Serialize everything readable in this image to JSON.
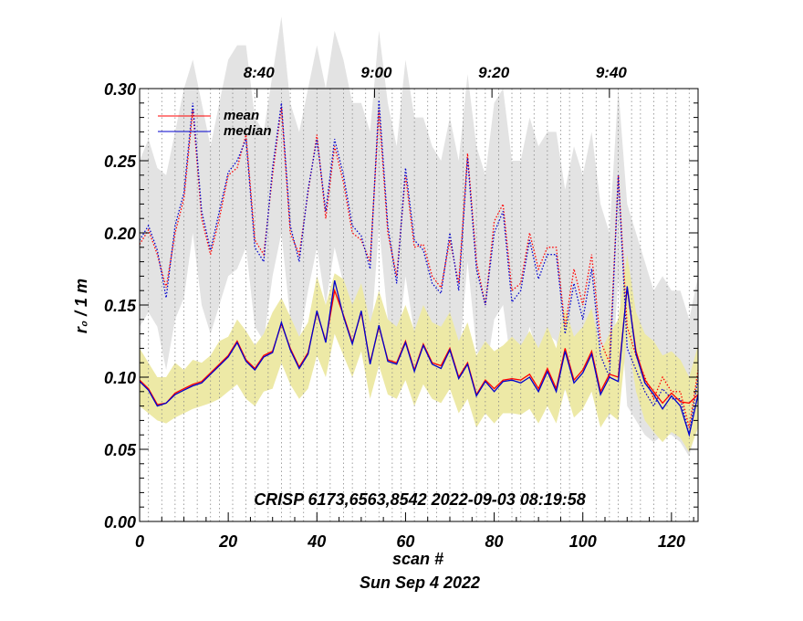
{
  "chart_data": {
    "type": "line",
    "title": "CRISP 6173,6563,8542 2022-09-03 08:19:58",
    "xlabel": "scan #",
    "ylabel": "r₀ / 1 m",
    "date_label": "Sun Sep  4 2022",
    "xlim": [
      0,
      126
    ],
    "ylim": [
      0,
      0.3
    ],
    "x_ticks": [
      0,
      20,
      40,
      60,
      80,
      100,
      120
    ],
    "x_tick_labels": [
      "0",
      "20",
      "40",
      "60",
      "80",
      "100",
      "120"
    ],
    "y_ticks": [
      0,
      0.05,
      0.1,
      0.15,
      0.2,
      0.25,
      0.3
    ],
    "y_tick_labels": [
      "0.00",
      "0.05",
      "0.10",
      "0.15",
      "0.20",
      "0.25",
      "0.30"
    ],
    "top_axis": {
      "ticks": [
        {
          "scan": 26.5,
          "label": "8:40"
        },
        {
          "scan": 53,
          "label": "9:00"
        },
        {
          "scan": 79.5,
          "label": "9:20"
        },
        {
          "scan": 106,
          "label": "9:40"
        }
      ]
    },
    "scan_gridlines": [
      2,
      5,
      8,
      10,
      13,
      16,
      18,
      21,
      24,
      26,
      29,
      32,
      34,
      37,
      40,
      43,
      46,
      48,
      51,
      54,
      57,
      59,
      62,
      65,
      67,
      70,
      73,
      76,
      78,
      81,
      84,
      86,
      89,
      92,
      95,
      97,
      100,
      103,
      106,
      108,
      111,
      113,
      116,
      119,
      121,
      124
    ],
    "legend": {
      "position": "top-left",
      "entries": [
        {
          "name": "mean",
          "color": "#ff0000"
        },
        {
          "name": "median",
          "color": "#0000cc"
        }
      ]
    },
    "colors": {
      "mean": "#ff0000",
      "median": "#0000cc",
      "band_low": "#ede9a6",
      "band_high": "#e3e3e3",
      "grid": "#888888"
    },
    "series": [
      {
        "name": "mean_low",
        "x": [
          0,
          2,
          4,
          6,
          8,
          10,
          12,
          14,
          16,
          18,
          20,
          22,
          24,
          26,
          28,
          30,
          32,
          34,
          36,
          38,
          40,
          42,
          44,
          46,
          48,
          50,
          52,
          54,
          56,
          58,
          60,
          62,
          64,
          66,
          68,
          70,
          72,
          74,
          76,
          78,
          80,
          82,
          84,
          86,
          88,
          90,
          92,
          94,
          96,
          98,
          100,
          102,
          104,
          106,
          108,
          110,
          112,
          114,
          116,
          118,
          120,
          122,
          124,
          126
        ],
        "values": [
          0.098,
          0.092,
          0.081,
          0.082,
          0.089,
          0.092,
          0.095,
          0.097,
          0.103,
          0.109,
          0.115,
          0.125,
          0.112,
          0.106,
          0.115,
          0.118,
          0.137,
          0.12,
          0.107,
          0.117,
          0.145,
          0.125,
          0.16,
          0.143,
          0.124,
          0.145,
          0.11,
          0.135,
          0.112,
          0.11,
          0.125,
          0.105,
          0.123,
          0.11,
          0.108,
          0.12,
          0.1,
          0.11,
          0.088,
          0.098,
          0.092,
          0.098,
          0.099,
          0.098,
          0.102,
          0.092,
          0.106,
          0.092,
          0.12,
          0.098,
          0.105,
          0.118,
          0.09,
          0.102,
          0.1,
          0.162,
          0.118,
          0.098,
          0.09,
          0.082,
          0.089,
          0.083,
          0.082,
          0.088
        ]
      },
      {
        "name": "median_low",
        "x": [
          0,
          2,
          4,
          6,
          8,
          10,
          12,
          14,
          16,
          18,
          20,
          22,
          24,
          26,
          28,
          30,
          32,
          34,
          36,
          38,
          40,
          42,
          44,
          46,
          48,
          50,
          52,
          54,
          56,
          58,
          60,
          62,
          64,
          66,
          68,
          70,
          72,
          74,
          76,
          78,
          80,
          82,
          84,
          86,
          88,
          90,
          92,
          94,
          96,
          98,
          100,
          102,
          104,
          106,
          108,
          110,
          112,
          114,
          116,
          118,
          120,
          122,
          124,
          126
        ],
        "values": [
          0.097,
          0.091,
          0.08,
          0.082,
          0.088,
          0.091,
          0.094,
          0.096,
          0.102,
          0.108,
          0.114,
          0.124,
          0.111,
          0.105,
          0.114,
          0.117,
          0.138,
          0.119,
          0.106,
          0.116,
          0.146,
          0.124,
          0.167,
          0.142,
          0.123,
          0.146,
          0.109,
          0.136,
          0.111,
          0.109,
          0.124,
          0.104,
          0.122,
          0.109,
          0.106,
          0.119,
          0.099,
          0.109,
          0.087,
          0.097,
          0.09,
          0.097,
          0.098,
          0.096,
          0.1,
          0.09,
          0.104,
          0.09,
          0.118,
          0.096,
          0.103,
          0.116,
          0.088,
          0.1,
          0.097,
          0.163,
          0.116,
          0.096,
          0.088,
          0.078,
          0.087,
          0.08,
          0.06,
          0.088
        ]
      },
      {
        "name": "mean_high",
        "x": [
          0,
          2,
          4,
          6,
          8,
          10,
          12,
          14,
          16,
          18,
          20,
          22,
          24,
          26,
          28,
          30,
          32,
          34,
          36,
          38,
          40,
          42,
          44,
          46,
          48,
          50,
          52,
          54,
          56,
          58,
          60,
          62,
          64,
          66,
          68,
          70,
          72,
          74,
          76,
          78,
          80,
          82,
          84,
          86,
          88,
          90,
          92,
          94,
          96,
          98,
          100,
          102,
          104,
          106,
          108,
          110,
          112,
          114,
          116,
          118,
          120,
          122,
          124,
          126
        ],
        "values": [
          0.192,
          0.202,
          0.185,
          0.162,
          0.2,
          0.224,
          0.285,
          0.21,
          0.185,
          0.21,
          0.24,
          0.245,
          0.268,
          0.195,
          0.185,
          0.24,
          0.287,
          0.2,
          0.185,
          0.228,
          0.268,
          0.21,
          0.26,
          0.235,
          0.2,
          0.195,
          0.18,
          0.285,
          0.2,
          0.17,
          0.24,
          0.19,
          0.192,
          0.17,
          0.162,
          0.195,
          0.165,
          0.255,
          0.18,
          0.15,
          0.208,
          0.22,
          0.16,
          0.165,
          0.2,
          0.175,
          0.19,
          0.19,
          0.135,
          0.175,
          0.15,
          0.185,
          0.125,
          0.11,
          0.24,
          0.135,
          0.115,
          0.1,
          0.085,
          0.1,
          0.09,
          0.09,
          0.065,
          0.105
        ]
      },
      {
        "name": "median_high",
        "x": [
          0,
          2,
          4,
          6,
          8,
          10,
          12,
          14,
          16,
          18,
          20,
          22,
          24,
          26,
          28,
          30,
          32,
          34,
          36,
          38,
          40,
          42,
          44,
          46,
          48,
          50,
          52,
          54,
          56,
          58,
          60,
          62,
          64,
          66,
          68,
          70,
          72,
          74,
          76,
          78,
          80,
          82,
          84,
          86,
          88,
          90,
          92,
          94,
          96,
          98,
          100,
          102,
          104,
          106,
          108,
          110,
          112,
          114,
          116,
          118,
          120,
          122,
          124,
          126
        ],
        "values": [
          0.195,
          0.205,
          0.188,
          0.155,
          0.205,
          0.228,
          0.29,
          0.215,
          0.188,
          0.215,
          0.242,
          0.25,
          0.265,
          0.19,
          0.18,
          0.245,
          0.29,
          0.205,
          0.18,
          0.23,
          0.265,
          0.215,
          0.265,
          0.24,
          0.205,
          0.198,
          0.175,
          0.292,
          0.205,
          0.165,
          0.245,
          0.195,
          0.188,
          0.165,
          0.158,
          0.2,
          0.16,
          0.252,
          0.175,
          0.15,
          0.2,
          0.215,
          0.152,
          0.16,
          0.195,
          0.168,
          0.185,
          0.185,
          0.13,
          0.165,
          0.14,
          0.175,
          0.115,
          0.1,
          0.24,
          0.12,
          0.105,
          0.09,
          0.08,
          0.092,
          0.085,
          0.085,
          0.06,
          0.1
        ]
      },
      {
        "name": "band_low_upper",
        "x": [
          0,
          2,
          4,
          6,
          8,
          10,
          12,
          14,
          16,
          18,
          20,
          22,
          24,
          26,
          28,
          30,
          32,
          34,
          36,
          38,
          40,
          42,
          44,
          46,
          48,
          50,
          52,
          54,
          56,
          58,
          60,
          62,
          64,
          66,
          68,
          70,
          72,
          74,
          76,
          78,
          80,
          82,
          84,
          86,
          88,
          90,
          92,
          94,
          96,
          98,
          100,
          102,
          104,
          106,
          108,
          110,
          112,
          114,
          116,
          118,
          120,
          122,
          124,
          126
        ],
        "values": [
          0.12,
          0.11,
          0.1,
          0.1,
          0.11,
          0.105,
          0.112,
          0.11,
          0.115,
          0.125,
          0.128,
          0.14,
          0.132,
          0.122,
          0.13,
          0.145,
          0.155,
          0.142,
          0.128,
          0.138,
          0.17,
          0.15,
          0.172,
          0.168,
          0.15,
          0.165,
          0.138,
          0.16,
          0.14,
          0.135,
          0.15,
          0.132,
          0.15,
          0.138,
          0.135,
          0.145,
          0.125,
          0.138,
          0.115,
          0.125,
          0.118,
          0.122,
          0.128,
          0.122,
          0.132,
          0.12,
          0.135,
          0.12,
          0.148,
          0.128,
          0.135,
          0.148,
          0.118,
          0.13,
          0.14,
          0.185,
          0.145,
          0.13,
          0.125,
          0.115,
          0.118,
          0.112,
          0.1,
          0.122
        ]
      },
      {
        "name": "band_low_lower",
        "x": [
          0,
          2,
          4,
          6,
          8,
          10,
          12,
          14,
          16,
          18,
          20,
          22,
          24,
          26,
          28,
          30,
          32,
          34,
          36,
          38,
          40,
          42,
          44,
          46,
          48,
          50,
          52,
          54,
          56,
          58,
          60,
          62,
          64,
          66,
          68,
          70,
          72,
          74,
          76,
          78,
          80,
          82,
          84,
          86,
          88,
          90,
          92,
          94,
          96,
          98,
          100,
          102,
          104,
          106,
          108,
          110,
          112,
          114,
          116,
          118,
          120,
          122,
          124,
          126
        ],
        "values": [
          0.08,
          0.075,
          0.07,
          0.068,
          0.072,
          0.075,
          0.078,
          0.08,
          0.082,
          0.085,
          0.09,
          0.095,
          0.085,
          0.08,
          0.09,
          0.092,
          0.11,
          0.095,
          0.085,
          0.092,
          0.115,
          0.1,
          0.13,
          0.115,
          0.1,
          0.118,
          0.085,
          0.108,
          0.088,
          0.085,
          0.098,
          0.08,
          0.095,
          0.085,
          0.082,
          0.092,
          0.075,
          0.085,
          0.065,
          0.075,
          0.068,
          0.075,
          0.075,
          0.074,
          0.078,
          0.068,
          0.08,
          0.068,
          0.092,
          0.072,
          0.078,
          0.09,
          0.065,
          0.075,
          0.07,
          0.13,
          0.09,
          0.07,
          0.062,
          0.055,
          0.062,
          0.058,
          0.048,
          0.065
        ]
      },
      {
        "name": "band_high_upper",
        "x": [
          0,
          2,
          4,
          6,
          8,
          10,
          12,
          14,
          16,
          18,
          20,
          22,
          24,
          26,
          28,
          30,
          32,
          34,
          36,
          38,
          40,
          42,
          44,
          46,
          48,
          50,
          52,
          54,
          56,
          58,
          60,
          62,
          64,
          66,
          68,
          70,
          72,
          74,
          76,
          78,
          80,
          82,
          84,
          86,
          88,
          90,
          92,
          94,
          96,
          98,
          100,
          102,
          104,
          106,
          108,
          110,
          112,
          114,
          116,
          118,
          120,
          122,
          124,
          126
        ],
        "values": [
          0.25,
          0.265,
          0.245,
          0.24,
          0.27,
          0.3,
          0.32,
          0.29,
          0.26,
          0.29,
          0.32,
          0.33,
          0.33,
          0.28,
          0.27,
          0.31,
          0.35,
          0.29,
          0.27,
          0.3,
          0.33,
          0.3,
          0.34,
          0.32,
          0.29,
          0.29,
          0.27,
          0.34,
          0.29,
          0.26,
          0.32,
          0.28,
          0.28,
          0.26,
          0.25,
          0.28,
          0.25,
          0.31,
          0.26,
          0.24,
          0.29,
          0.3,
          0.25,
          0.25,
          0.28,
          0.26,
          0.27,
          0.27,
          0.23,
          0.26,
          0.24,
          0.27,
          0.22,
          0.2,
          0.3,
          0.22,
          0.2,
          0.18,
          0.16,
          0.17,
          0.16,
          0.16,
          0.14,
          0.17
        ]
      },
      {
        "name": "band_high_lower",
        "x": [
          0,
          2,
          4,
          6,
          8,
          10,
          12,
          14,
          16,
          18,
          20,
          22,
          24,
          26,
          28,
          30,
          32,
          34,
          36,
          38,
          40,
          42,
          44,
          46,
          48,
          50,
          52,
          54,
          56,
          58,
          60,
          62,
          64,
          66,
          68,
          70,
          72,
          74,
          76,
          78,
          80,
          82,
          84,
          86,
          88,
          90,
          92,
          94,
          96,
          98,
          100,
          102,
          104,
          106,
          108,
          110,
          112,
          114,
          116,
          118,
          120,
          122,
          124,
          126
        ],
        "values": [
          0.135,
          0.145,
          0.135,
          0.105,
          0.14,
          0.155,
          0.2,
          0.15,
          0.13,
          0.15,
          0.17,
          0.175,
          0.19,
          0.135,
          0.125,
          0.17,
          0.2,
          0.14,
          0.125,
          0.16,
          0.19,
          0.15,
          0.19,
          0.165,
          0.14,
          0.14,
          0.12,
          0.205,
          0.14,
          0.115,
          0.17,
          0.13,
          0.13,
          0.115,
          0.105,
          0.135,
          0.11,
          0.18,
          0.12,
          0.1,
          0.14,
          0.15,
          0.105,
          0.11,
          0.135,
          0.115,
          0.13,
          0.125,
          0.09,
          0.115,
          0.095,
          0.12,
          0.08,
          0.07,
          0.17,
          0.08,
          0.07,
          0.06,
          0.055,
          0.06,
          0.06,
          0.055,
          0.045,
          0.07
        ]
      }
    ]
  }
}
